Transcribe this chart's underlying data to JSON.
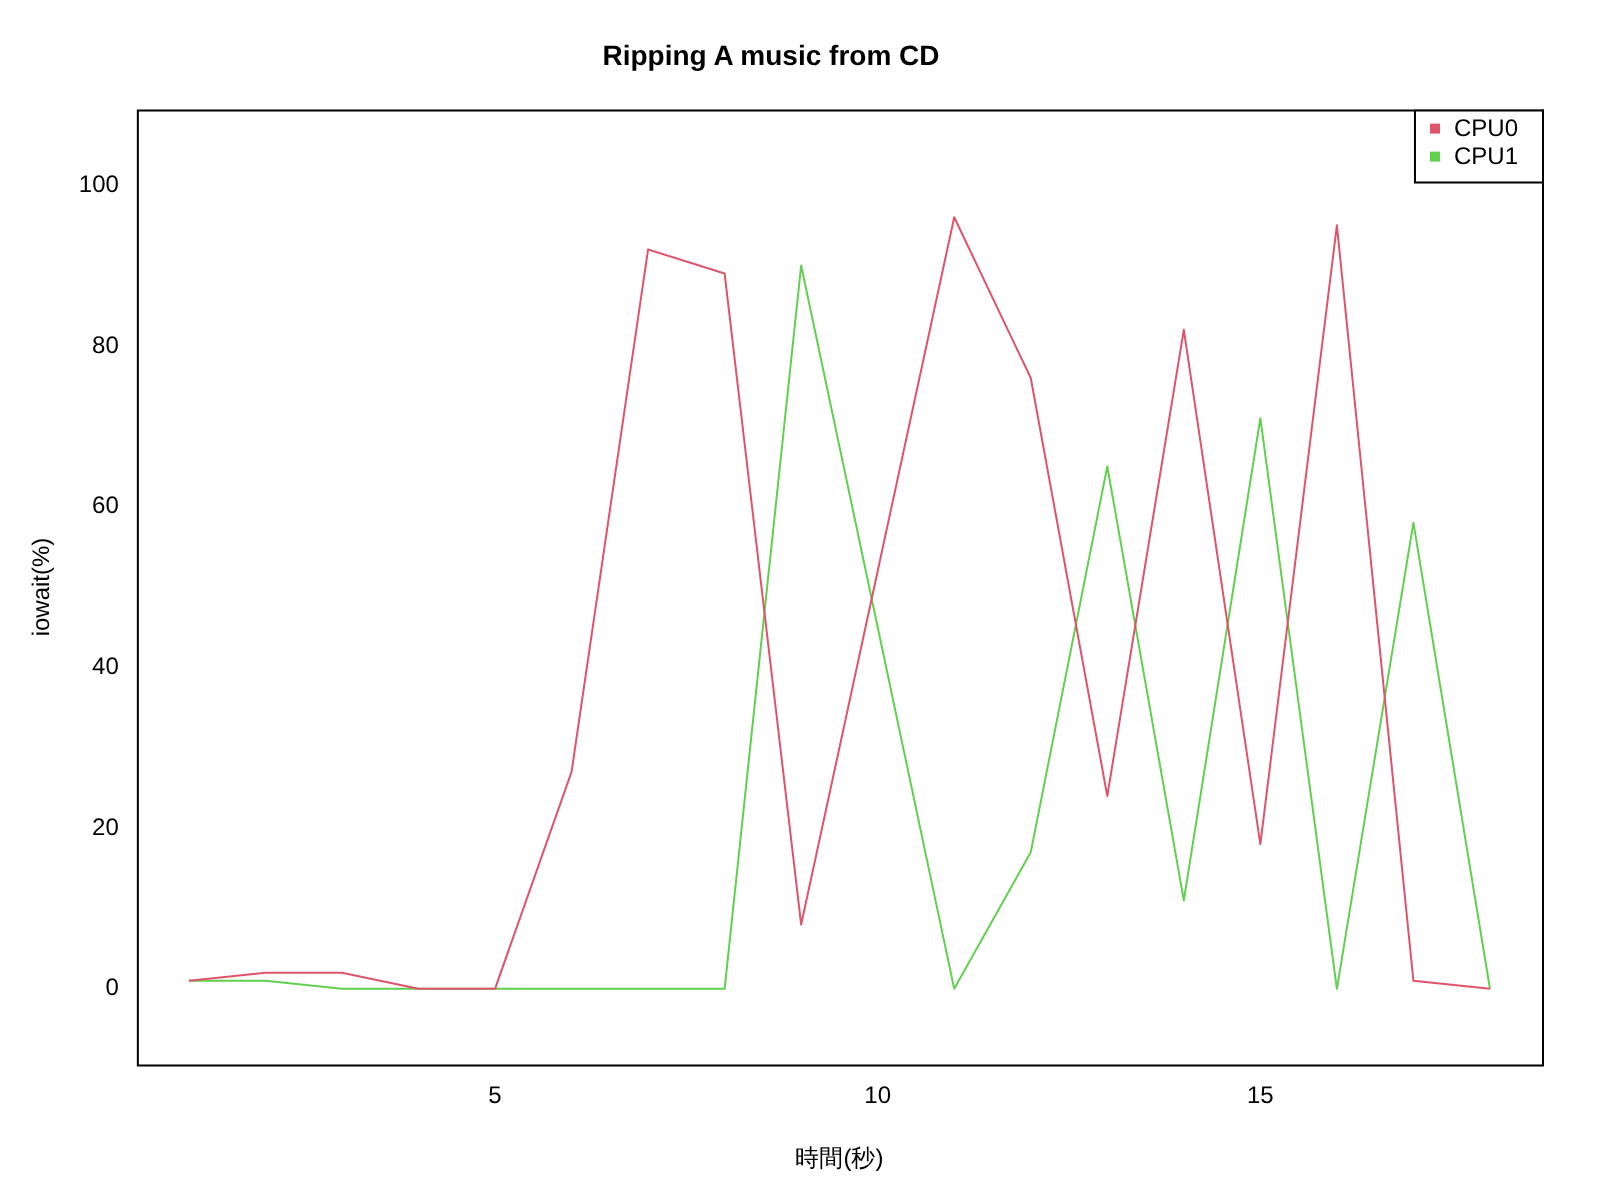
{
  "chart_data": {
    "type": "line",
    "title": "Ripping A music from CD",
    "xlabel": "時間(秒)",
    "ylabel": "iowait(%)",
    "x": [
      1,
      2,
      3,
      4,
      5,
      6,
      7,
      8,
      9,
      10,
      11,
      12,
      13,
      14,
      15,
      16,
      17,
      18
    ],
    "series": [
      {
        "name": "CPU0",
        "color": "#df536b",
        "values": [
          1,
          2,
          2,
          0,
          0,
          27,
          92,
          89,
          8,
          52,
          96,
          76,
          24,
          82,
          18,
          95,
          1,
          0
        ]
      },
      {
        "name": "CPU1",
        "color": "#61d04f",
        "values": [
          1,
          1,
          0,
          0,
          0,
          0,
          0,
          0,
          90,
          45,
          0,
          17,
          65,
          11,
          71,
          0,
          58,
          0
        ]
      }
    ],
    "xlim": [
      0.32,
      18.68
    ],
    "ylim": [
      -9.4,
      109.4
    ],
    "xticks": [
      5,
      10,
      15
    ],
    "yticks": [
      0,
      20,
      40,
      60,
      80,
      100
    ],
    "grid": false,
    "legend": "top right",
    "marker": "none",
    "line_style": "solid"
  }
}
